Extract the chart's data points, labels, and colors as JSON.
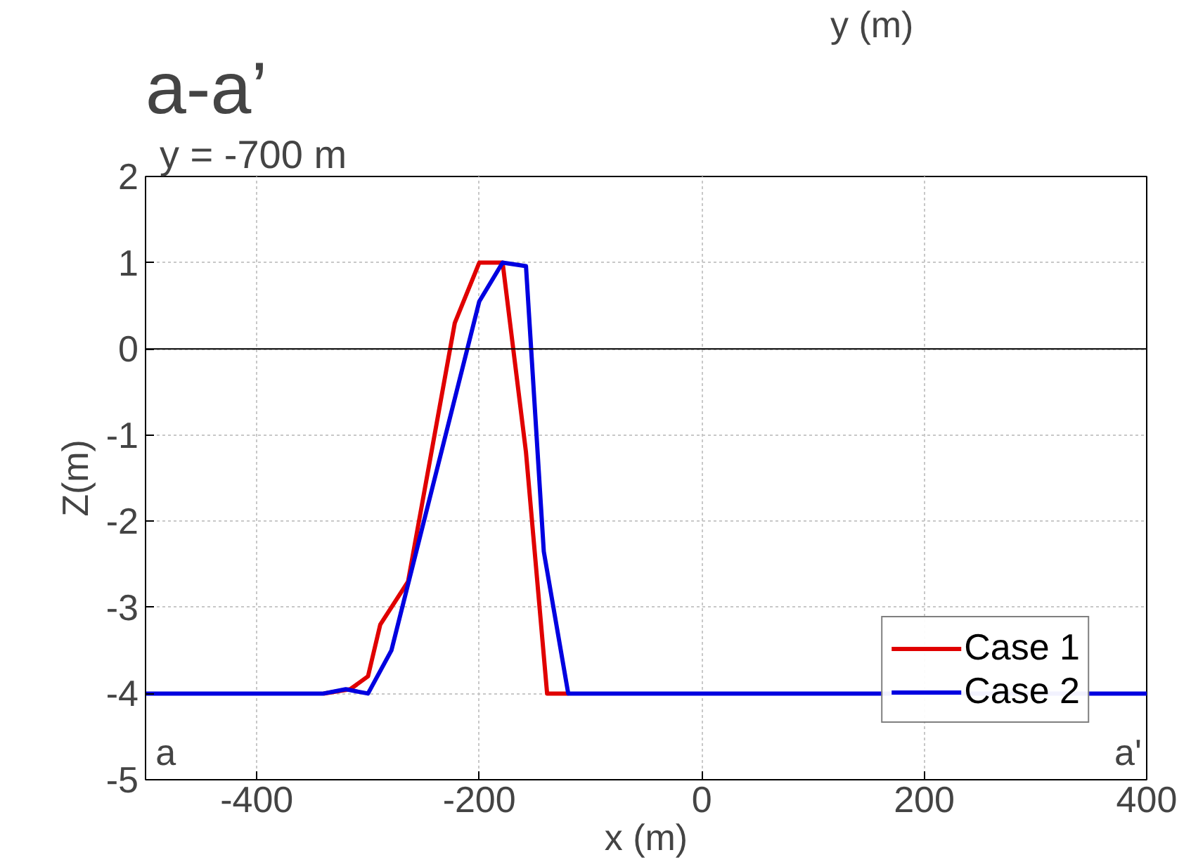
{
  "chart_data": {
    "type": "line",
    "title": "a-a’",
    "subtitle": "y = -700 m",
    "xlabel": "x (m)",
    "ylabel": "Z(m)",
    "annotations": [
      "y (m)",
      "a",
      "a'"
    ],
    "xlim": [
      -500,
      400
    ],
    "ylim": [
      -5,
      2
    ],
    "xticks": [
      -400,
      -200,
      0,
      200,
      400
    ],
    "yticks": [
      -5,
      -4,
      -3,
      -2,
      -1,
      0,
      1,
      2
    ],
    "grid": true,
    "legend": "bottom right",
    "marker": "none",
    "line_style": "solid",
    "ref_lines": [
      {
        "axis": "y",
        "value": 0,
        "color": "#000000"
      }
    ],
    "series": [
      {
        "name": "Case 1",
        "color": "#e00000",
        "x": [
          -340,
          -316,
          -300,
          -289,
          -264,
          -222,
          -200,
          -179,
          -158,
          -139,
          -120
        ],
        "values": [
          -4,
          -3.95,
          -3.8,
          -3.2,
          -2.7,
          0.3,
          1,
          1,
          -1.2,
          -4,
          -4
        ]
      },
      {
        "name": "Case 2",
        "color": "#0000e0",
        "x": [
          -500,
          -400,
          -340,
          -320,
          -300,
          -279,
          -200,
          -179,
          -158,
          -142,
          -120,
          400
        ],
        "values": [
          -4,
          -4,
          -4,
          -3.95,
          -4,
          -3.5,
          0.55,
          1,
          0.96,
          -2.35,
          -4,
          -4
        ]
      }
    ]
  }
}
